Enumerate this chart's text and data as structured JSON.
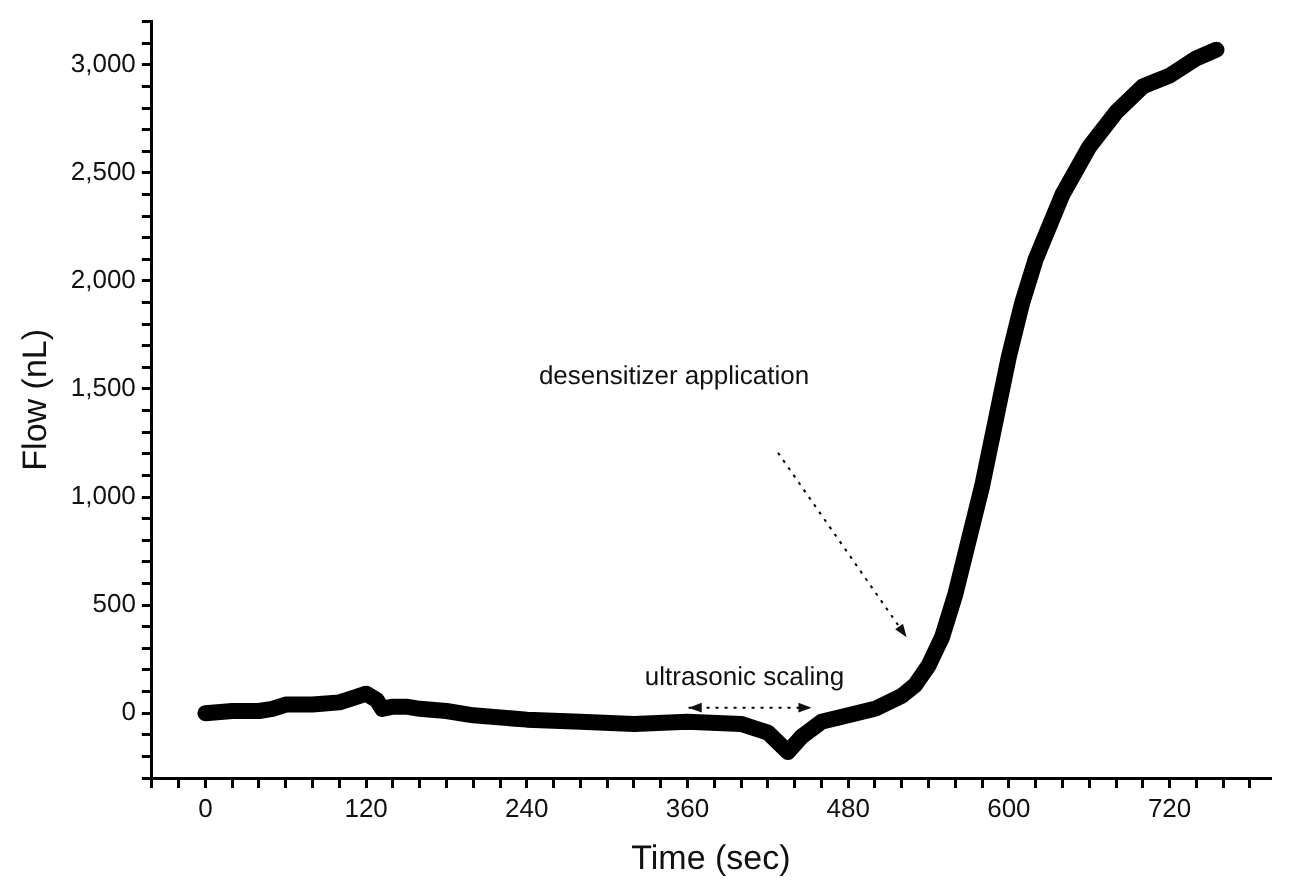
{
  "chart_data": {
    "type": "line",
    "xlabel": "Time (sec)",
    "ylabel": "Flow (nL)",
    "x": [
      0,
      20,
      40,
      50,
      60,
      80,
      100,
      110,
      120,
      128,
      132,
      140,
      150,
      160,
      180,
      200,
      240,
      280,
      320,
      360,
      400,
      420,
      435,
      445,
      460,
      480,
      500,
      520,
      530,
      540,
      550,
      560,
      570,
      580,
      590,
      600,
      610,
      620,
      640,
      660,
      680,
      700,
      720,
      740,
      755
    ],
    "series": [
      {
        "color": "#000000",
        "values": [
          0,
          10,
          10,
          20,
          40,
          40,
          50,
          70,
          90,
          60,
          20,
          30,
          30,
          20,
          10,
          -10,
          -30,
          -40,
          -50,
          -40,
          -50,
          -90,
          -180,
          -110,
          -40,
          -10,
          20,
          80,
          130,
          220,
          350,
          550,
          800,
          1050,
          1350,
          1650,
          1900,
          2100,
          2400,
          2620,
          2780,
          2900,
          2950,
          3030,
          3070
        ]
      }
    ],
    "xlim": [
      -40,
      795
    ],
    "ylim": [
      -300,
      3200
    ],
    "xticks": [
      {
        "value": -40,
        "label": null
      },
      {
        "value": -20,
        "label": null
      },
      0,
      {
        "value": 20,
        "label": null
      },
      {
        "value": 40,
        "label": null
      },
      {
        "value": 60,
        "label": null
      },
      {
        "value": 80,
        "label": null
      },
      {
        "value": 100,
        "label": null
      },
      120,
      {
        "value": 140,
        "label": null
      },
      {
        "value": 160,
        "label": null
      },
      {
        "value": 180,
        "label": null
      },
      {
        "value": 200,
        "label": null
      },
      {
        "value": 220,
        "label": null
      },
      240,
      {
        "value": 260,
        "label": null
      },
      {
        "value": 280,
        "label": null
      },
      {
        "value": 300,
        "label": null
      },
      {
        "value": 320,
        "label": null
      },
      {
        "value": 340,
        "label": null
      },
      360,
      {
        "value": 380,
        "label": null
      },
      {
        "value": 400,
        "label": null
      },
      {
        "value": 420,
        "label": null
      },
      {
        "value": 440,
        "label": null
      },
      {
        "value": 460,
        "label": null
      },
      480,
      {
        "value": 500,
        "label": null
      },
      {
        "value": 520,
        "label": null
      },
      {
        "value": 540,
        "label": null
      },
      {
        "value": 560,
        "label": null
      },
      {
        "value": 580,
        "label": null
      },
      600,
      {
        "value": 620,
        "label": null
      },
      {
        "value": 640,
        "label": null
      },
      {
        "value": 660,
        "label": null
      },
      {
        "value": 680,
        "label": null
      },
      {
        "value": 700,
        "label": null
      },
      720,
      {
        "value": 740,
        "label": null
      },
      {
        "value": 760,
        "label": null
      },
      {
        "value": 780,
        "label": null
      }
    ],
    "yticks": [
      {
        "value": -300,
        "label": null
      },
      {
        "value": -200,
        "label": null
      },
      {
        "value": -100,
        "label": null
      },
      0,
      {
        "value": 100,
        "label": null
      },
      {
        "value": 200,
        "label": null
      },
      {
        "value": 300,
        "label": null
      },
      {
        "value": 400,
        "label": null
      },
      500,
      {
        "value": 600,
        "label": null
      },
      {
        "value": 700,
        "label": null
      },
      {
        "value": 800,
        "label": null
      },
      {
        "value": 900,
        "label": null
      },
      {
        "value": 1000,
        "label": "1,000"
      },
      {
        "value": 1100,
        "label": null
      },
      {
        "value": 1200,
        "label": null
      },
      {
        "value": 1300,
        "label": null
      },
      {
        "value": 1400,
        "label": null
      },
      {
        "value": 1500,
        "label": "1,500"
      },
      {
        "value": 1600,
        "label": null
      },
      {
        "value": 1700,
        "label": null
      },
      {
        "value": 1800,
        "label": null
      },
      {
        "value": 1900,
        "label": null
      },
      {
        "value": 2000,
        "label": "2,000"
      },
      {
        "value": 2100,
        "label": null
      },
      {
        "value": 2200,
        "label": null
      },
      {
        "value": 2300,
        "label": null
      },
      {
        "value": 2400,
        "label": null
      },
      {
        "value": 2500,
        "label": "2,500"
      },
      {
        "value": 2600,
        "label": null
      },
      {
        "value": 2700,
        "label": null
      },
      {
        "value": 2800,
        "label": null
      },
      {
        "value": 2900,
        "label": null
      },
      {
        "value": 3000,
        "label": "3,000"
      },
      {
        "value": 3100,
        "label": null
      },
      {
        "value": 3200,
        "label": null
      }
    ],
    "annotations": [
      "desensitizer application",
      "ultrasonic scaling"
    ],
    "grid": false,
    "legend": false,
    "marker": "none",
    "line_style": "solid"
  }
}
